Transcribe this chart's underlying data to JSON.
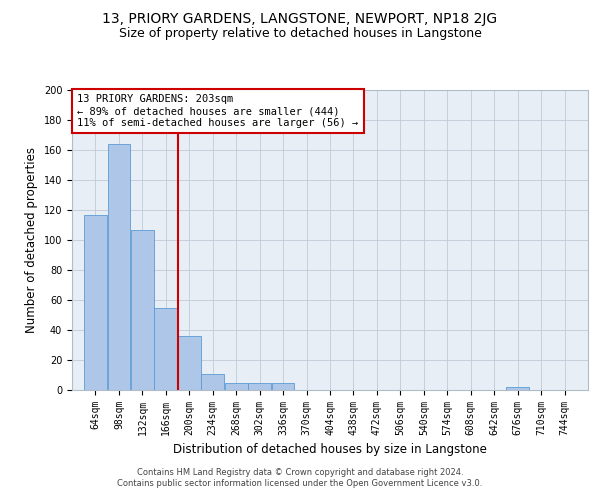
{
  "title": "13, PRIORY GARDENS, LANGSTONE, NEWPORT, NP18 2JG",
  "subtitle": "Size of property relative to detached houses in Langstone",
  "xlabel": "Distribution of detached houses by size in Langstone",
  "ylabel": "Number of detached properties",
  "bins": [
    64,
    98,
    132,
    166,
    200,
    234,
    268,
    302,
    336,
    370,
    404,
    438,
    472,
    506,
    540,
    574,
    608,
    642,
    676,
    710,
    744
  ],
  "counts": [
    117,
    164,
    107,
    55,
    36,
    11,
    5,
    5,
    5,
    0,
    0,
    0,
    0,
    0,
    0,
    0,
    0,
    0,
    2,
    0,
    0
  ],
  "bar_color": "#aec6e8",
  "bar_edge_color": "#5b9bd5",
  "vline_x": 200,
  "vline_color": "#cc0000",
  "annotation_text": "13 PRIORY GARDENS: 203sqm\n← 89% of detached houses are smaller (444)\n11% of semi-detached houses are larger (56) →",
  "annotation_box_color": "#ffffff",
  "annotation_box_edge": "#cc0000",
  "ylim": [
    0,
    200
  ],
  "yticks": [
    0,
    20,
    40,
    60,
    80,
    100,
    120,
    140,
    160,
    180,
    200
  ],
  "bg_color": "#e8eef5",
  "footer": "Contains HM Land Registry data © Crown copyright and database right 2024.\nContains public sector information licensed under the Open Government Licence v3.0.",
  "title_fontsize": 10,
  "subtitle_fontsize": 9,
  "tick_label_fontsize": 7,
  "ylabel_fontsize": 8.5,
  "xlabel_fontsize": 8.5,
  "annotation_fontsize": 7.5,
  "footer_fontsize": 6
}
